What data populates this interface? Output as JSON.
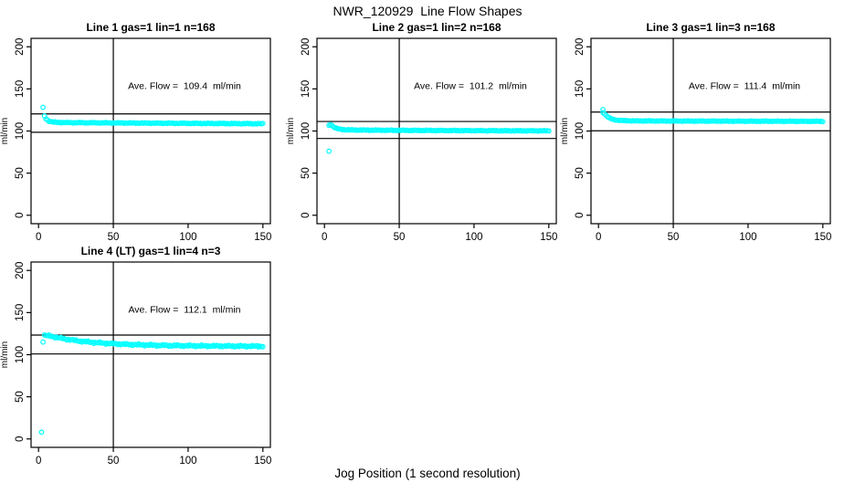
{
  "header": {
    "title": "NWR_120929  Line Flow Shapes"
  },
  "footer": {
    "xlabel": "Jog Position (1 second resolution)"
  },
  "chart_data": {
    "type": "scatter",
    "title": "NWR_120929  Line Flow Shapes",
    "xlabel": "Jog Position (1 second resolution)",
    "ylabel": "ml/min",
    "point_color": "#00ffff",
    "axis_color": "#000000",
    "background": "#ffffff",
    "grid": false,
    "legend": "none",
    "xticks": [
      0,
      50,
      100,
      150
    ],
    "yticks": [
      0,
      50,
      100,
      150,
      200
    ],
    "xlim": [
      -5,
      155
    ],
    "ylim": [
      -10,
      210
    ],
    "vline_x": 50,
    "panels": [
      {
        "title": "Line 1 gas=1 lin=1 n=168",
        "ave_flow": 109.4,
        "ave_label": "Ave. Flow =  109.4  ml/min",
        "hline_upper": 120.3,
        "hline_lower": 98.5,
        "n": 168,
        "jitter": 0.5,
        "band": [
          [
            4,
            118
          ],
          [
            5,
            114.5
          ],
          [
            6,
            112.8
          ],
          [
            7,
            111.8
          ],
          [
            8,
            111.2
          ],
          [
            10,
            110.6
          ],
          [
            13,
            110.2
          ],
          [
            17,
            110
          ],
          [
            25,
            109.9
          ],
          [
            40,
            109.7
          ],
          [
            60,
            109.5
          ],
          [
            90,
            109.2
          ],
          [
            120,
            108.9
          ],
          [
            150,
            108.6
          ]
        ],
        "extra_points": [
          [
            3,
            128
          ]
        ]
      },
      {
        "title": "Line 2 gas=1 lin=2 n=168",
        "ave_flow": 101.2,
        "ave_label": "Ave. Flow =  101.2  ml/min",
        "hline_upper": 111.3,
        "hline_lower": 91.1,
        "n": 168,
        "jitter": 0.5,
        "band": [
          [
            3,
            106.5
          ],
          [
            4,
            108
          ],
          [
            5,
            106.8
          ],
          [
            6,
            105.2
          ],
          [
            7,
            104
          ],
          [
            8,
            103.2
          ],
          [
            10,
            102.2
          ],
          [
            13,
            101.6
          ],
          [
            17,
            101.3
          ],
          [
            25,
            101.1
          ],
          [
            40,
            100.9
          ],
          [
            60,
            100.7
          ],
          [
            90,
            100.5
          ],
          [
            120,
            100.3
          ],
          [
            150,
            100.2
          ]
        ],
        "extra_points": [
          [
            3,
            76
          ]
        ]
      },
      {
        "title": "Line 3 gas=1 lin=3 n=168",
        "ave_flow": 111.4,
        "ave_label": "Ave. Flow =  111.4  ml/min",
        "hline_upper": 122.5,
        "hline_lower": 100.3,
        "n": 168,
        "jitter": 0.4,
        "band": [
          [
            3,
            122
          ],
          [
            4,
            120.5
          ],
          [
            5,
            118.8
          ],
          [
            6,
            117
          ],
          [
            7,
            115.8
          ],
          [
            8,
            114.8
          ],
          [
            10,
            113.6
          ],
          [
            13,
            112.8
          ],
          [
            17,
            112.3
          ],
          [
            25,
            112
          ],
          [
            40,
            111.9
          ],
          [
            60,
            111.8
          ],
          [
            90,
            111.7
          ],
          [
            120,
            111.6
          ],
          [
            150,
            111.5
          ]
        ],
        "extra_points": [
          [
            3,
            125.5
          ]
        ]
      },
      {
        "title": "Line 4 (LT) gas=1 lin=4 n=3",
        "ave_flow": 112.1,
        "ave_label": "Ave. Flow =  112.1  ml/min",
        "hline_upper": 123.3,
        "hline_lower": 100.9,
        "n": 3,
        "jitter": 1.1,
        "band": [
          [
            4,
            123
          ],
          [
            6,
            122.6
          ],
          [
            8,
            122
          ],
          [
            10,
            121.3
          ],
          [
            12,
            120.6
          ],
          [
            15,
            119.6
          ],
          [
            18,
            118.6
          ],
          [
            21,
            117.8
          ],
          [
            24,
            117
          ],
          [
            27,
            116.3
          ],
          [
            30,
            115.7
          ],
          [
            34,
            115
          ],
          [
            38,
            114.4
          ],
          [
            42,
            113.9
          ],
          [
            46,
            113.4
          ],
          [
            50,
            113
          ],
          [
            55,
            112.6
          ],
          [
            60,
            112.2
          ],
          [
            66,
            111.8
          ],
          [
            72,
            111.5
          ],
          [
            80,
            111.1
          ],
          [
            90,
            110.8
          ],
          [
            100,
            110.6
          ],
          [
            110,
            110.4
          ],
          [
            120,
            110.3
          ],
          [
            135,
            110.1
          ],
          [
            150,
            110
          ]
        ],
        "extra_points": [
          [
            2,
            8
          ],
          [
            3,
            115
          ]
        ]
      }
    ]
  }
}
